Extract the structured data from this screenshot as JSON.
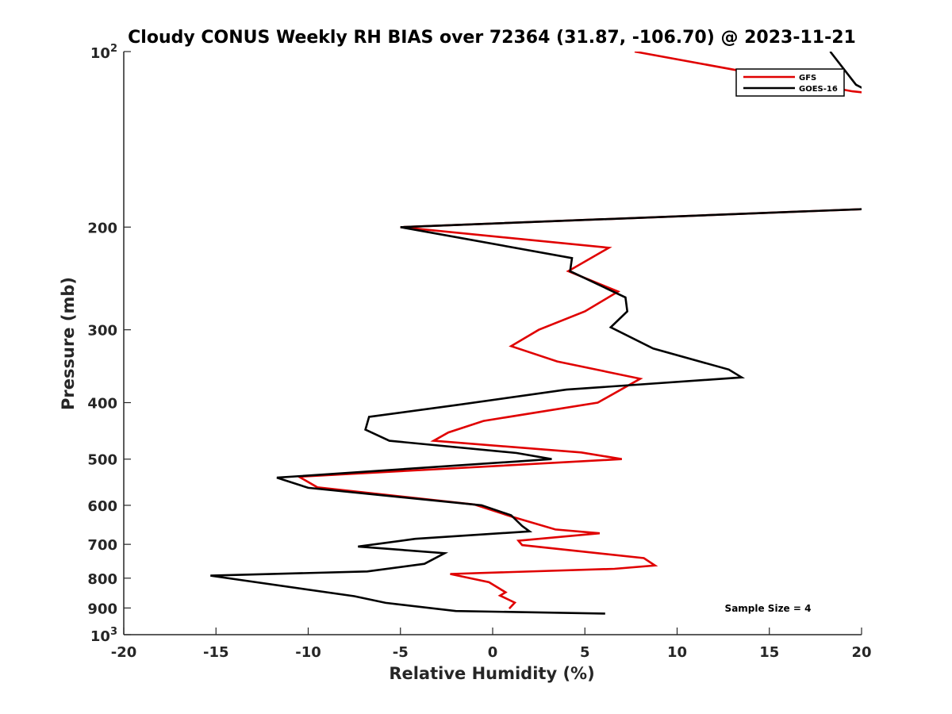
{
  "chart_data": {
    "type": "line",
    "title": "Cloudy CONUS Weekly RH BIAS over 72364 (31.87, -106.70) @ 2023-11-21",
    "xlabel": "Relative Humidity (%)",
    "ylabel": "Pressure (mb)",
    "xlim": [
      -20,
      20
    ],
    "ylim": [
      100,
      1000
    ],
    "y_scale": "log",
    "y_reversed": true,
    "x_ticks": [
      -20,
      -15,
      -10,
      -5,
      0,
      5,
      10,
      15,
      20
    ],
    "x_tick_labels": [
      "-20",
      "-15",
      "-10",
      "-5",
      "0",
      "5",
      "10",
      "15",
      "20"
    ],
    "y_ticks": [
      {
        "value": 100,
        "base": "10",
        "exp": "2"
      },
      {
        "value": 200,
        "label": "200"
      },
      {
        "value": 300,
        "label": "300"
      },
      {
        "value": 400,
        "label": "400"
      },
      {
        "value": 500,
        "label": "500"
      },
      {
        "value": 600,
        "label": "600"
      },
      {
        "value": 700,
        "label": "700"
      },
      {
        "value": 800,
        "label": "800"
      },
      {
        "value": 900,
        "label": "900"
      },
      {
        "value": 1000,
        "base": "10",
        "exp": "3"
      }
    ],
    "grid": false,
    "legend_position": "top-right",
    "annotation": "Sample Size = 4",
    "series": [
      {
        "name": "GFS",
        "color": "#e00000",
        "points": [
          [
            7.7,
            100
          ],
          [
            19.5,
            117
          ],
          [
            20.6,
            118
          ],
          [
            20.6,
            186
          ],
          [
            -5.0,
            200
          ],
          [
            6.3,
            217
          ],
          [
            4.1,
            238
          ],
          [
            6.8,
            258
          ],
          [
            5.0,
            279
          ],
          [
            2.5,
            300
          ],
          [
            1.0,
            320
          ],
          [
            3.5,
            340
          ],
          [
            8.0,
            364
          ],
          [
            5.7,
            400
          ],
          [
            -0.5,
            430
          ],
          [
            -2.4,
            450
          ],
          [
            -3.2,
            465
          ],
          [
            4.8,
            487
          ],
          [
            7.0,
            500
          ],
          [
            -10.5,
            536
          ],
          [
            -9.5,
            559
          ],
          [
            -1.0,
            598
          ],
          [
            1.0,
            627
          ],
          [
            3.4,
            660
          ],
          [
            5.8,
            670
          ],
          [
            1.4,
            690
          ],
          [
            1.6,
            702
          ],
          [
            8.2,
            739
          ],
          [
            8.8,
            761
          ],
          [
            6.6,
            771
          ],
          [
            -2.3,
            787
          ],
          [
            -0.2,
            813
          ],
          [
            0.7,
            846
          ],
          [
            0.4,
            857
          ],
          [
            1.2,
            881
          ],
          [
            0.9,
            902
          ]
        ]
      },
      {
        "name": "GOES-16",
        "color": "#000000",
        "points": [
          [
            18.3,
            100
          ],
          [
            19.7,
            114
          ],
          [
            20.6,
            118
          ],
          [
            20.6,
            186
          ],
          [
            -5.0,
            200
          ],
          [
            4.3,
            226
          ],
          [
            4.2,
            238
          ],
          [
            7.2,
            264
          ],
          [
            7.3,
            279
          ],
          [
            6.4,
            297
          ],
          [
            8.7,
            323
          ],
          [
            12.8,
            351
          ],
          [
            13.5,
            362
          ],
          [
            4.0,
            380
          ],
          [
            -2.0,
            404
          ],
          [
            -6.7,
            423
          ],
          [
            -6.9,
            445
          ],
          [
            -5.6,
            465
          ],
          [
            1.3,
            488
          ],
          [
            3.2,
            500
          ],
          [
            -11.7,
            538
          ],
          [
            -10.0,
            560
          ],
          [
            -0.6,
            600
          ],
          [
            1.0,
            624
          ],
          [
            1.6,
            651
          ],
          [
            2.0,
            665
          ],
          [
            -4.2,
            685
          ],
          [
            -7.3,
            706
          ],
          [
            -2.6,
            725
          ],
          [
            -3.7,
            756
          ],
          [
            -6.8,
            779
          ],
          [
            -15.3,
            792
          ],
          [
            -7.5,
            859
          ],
          [
            -5.8,
            882
          ],
          [
            -2.0,
            911
          ],
          [
            6.1,
            920
          ]
        ]
      }
    ]
  }
}
